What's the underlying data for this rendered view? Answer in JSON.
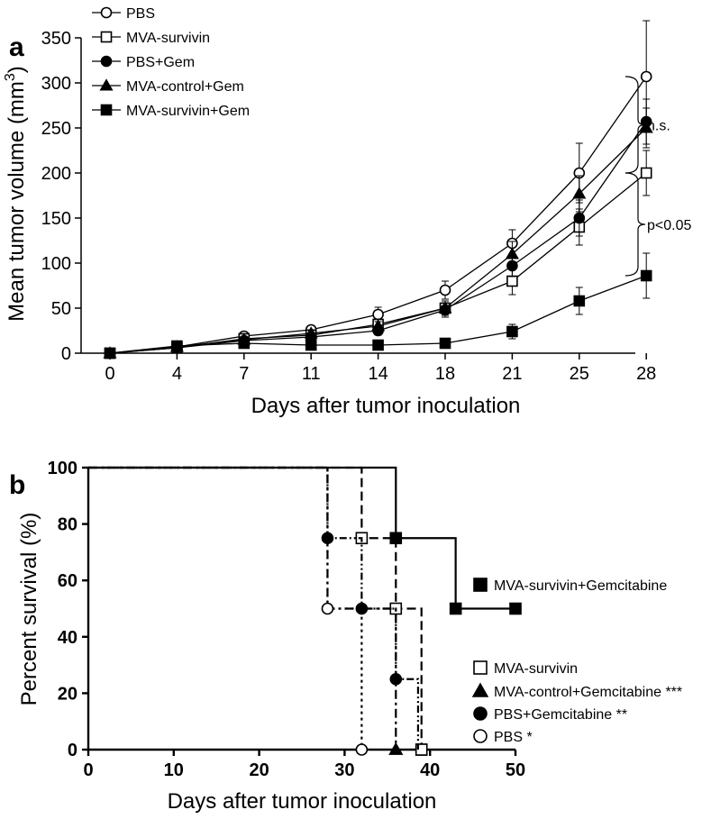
{
  "chart_data": [
    {
      "panel_label": "a",
      "type": "line",
      "xlabel": "Days after tumor inoculation",
      "ylabel_main": "Mean tumor volume (mm",
      "ylabel_sup": "3",
      "ylabel_close": ")",
      "categories": [
        "0",
        "4",
        "7",
        "11",
        "14",
        "18",
        "21",
        "25",
        "28"
      ],
      "ylim": [
        0,
        350
      ],
      "yticks": [
        "0",
        "50",
        "100",
        "150",
        "200",
        "250",
        "300",
        "350"
      ],
      "grid": false,
      "legend_position": "top-left",
      "series": [
        {
          "name": "PBS",
          "marker": "open-circle",
          "values": [
            0,
            7,
            19,
            26,
            43,
            70,
            122,
            200,
            307
          ],
          "errors": [
            0,
            2,
            3,
            4,
            8,
            10,
            15,
            33,
            62
          ]
        },
        {
          "name": "MVA-survivin",
          "marker": "open-square",
          "values": [
            0,
            6,
            16,
            20,
            32,
            50,
            80,
            140,
            200
          ],
          "errors": [
            0,
            2,
            3,
            4,
            6,
            8,
            15,
            20,
            25
          ]
        },
        {
          "name": "PBS+Gem",
          "marker": "filled-circle",
          "values": [
            0,
            6,
            14,
            18,
            25,
            48,
            97,
            150,
            257
          ],
          "errors": [
            0,
            2,
            3,
            3,
            5,
            8,
            12,
            20,
            25
          ]
        },
        {
          "name": "MVA-control+Gem",
          "marker": "filled-triangle",
          "values": [
            0,
            7,
            15,
            22,
            30,
            50,
            110,
            177,
            250
          ],
          "errors": [
            0,
            2,
            3,
            4,
            5,
            8,
            14,
            20,
            22
          ]
        },
        {
          "name": "MVA-survivin+Gem",
          "marker": "filled-square",
          "values": [
            0,
            8,
            11,
            9,
            9,
            11,
            24,
            58,
            86
          ],
          "errors": [
            0,
            2,
            2,
            2,
            2,
            3,
            8,
            15,
            25
          ]
        }
      ],
      "annotations": [
        {
          "text": "n.s.",
          "from": 307,
          "to": 200
        },
        {
          "text": "p<0.05",
          "from": 200,
          "to": 86
        }
      ]
    },
    {
      "panel_label": "b",
      "type": "line",
      "subtype": "kaplan-meier",
      "xlabel": "Days after tumor inoculation",
      "ylabel": "Percent survival (%)",
      "xlim": [
        0,
        50
      ],
      "ylim": [
        0,
        100
      ],
      "xticks": [
        "0",
        "10",
        "20",
        "30",
        "40",
        "50"
      ],
      "yticks": [
        "0",
        "20",
        "40",
        "60",
        "80",
        "100"
      ],
      "grid": false,
      "series": [
        {
          "name": "MVA-survivin+Gemcitabine",
          "marker": "filled-square",
          "dash": "solid",
          "steps": [
            [
              0,
              100
            ],
            [
              36,
              100
            ],
            [
              36,
              75
            ],
            [
              43,
              75
            ],
            [
              43,
              50
            ],
            [
              50,
              50
            ]
          ],
          "markers": [
            [
              36,
              75
            ],
            [
              43,
              50
            ],
            [
              50,
              50
            ],
            [
              39,
              0
            ]
          ]
        },
        {
          "name": "MVA-survivin",
          "marker": "open-square",
          "dash": "dashed",
          "steps": [
            [
              0,
              100
            ],
            [
              32,
              100
            ],
            [
              32,
              75
            ],
            [
              36,
              75
            ],
            [
              36,
              50
            ],
            [
              39,
              50
            ],
            [
              39,
              0
            ]
          ],
          "markers": [
            [
              32,
              75
            ],
            [
              36,
              50
            ],
            [
              39,
              0
            ]
          ]
        },
        {
          "name": "MVA-control+Gemcitabine ***",
          "marker": "filled-triangle",
          "dash": "dash-dot",
          "steps": [
            [
              0,
              100
            ],
            [
              28,
              100
            ],
            [
              28,
              50
            ],
            [
              36,
              50
            ],
            [
              36,
              0
            ]
          ],
          "markers": [
            [
              36,
              0
            ]
          ]
        },
        {
          "name": "PBS+Gemcitabine **",
          "marker": "filled-circle",
          "dash": "dash-dot-dot",
          "steps": [
            [
              0,
              100
            ],
            [
              28,
              100
            ],
            [
              28,
              75
            ],
            [
              32,
              75
            ],
            [
              32,
              50
            ],
            [
              36,
              50
            ],
            [
              36,
              25
            ],
            [
              38.6,
              25
            ],
            [
              38.6,
              0
            ]
          ],
          "markers": [
            [
              28,
              75
            ],
            [
              32,
              50
            ],
            [
              36,
              25
            ]
          ]
        },
        {
          "name": "PBS *",
          "marker": "open-circle",
          "dash": "dotted",
          "steps": [
            [
              0,
              100
            ],
            [
              28,
              100
            ],
            [
              28,
              50
            ],
            [
              32,
              50
            ],
            [
              32,
              0
            ]
          ],
          "markers": [
            [
              28,
              50
            ],
            [
              32,
              0
            ]
          ]
        }
      ]
    }
  ]
}
